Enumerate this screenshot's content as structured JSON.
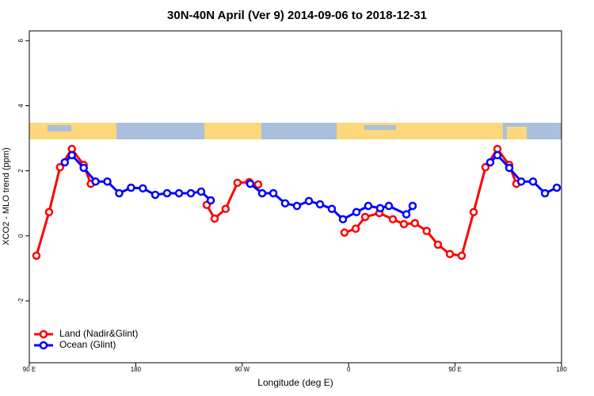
{
  "chart_data": {
    "type": "line",
    "title": "30N-40N April (Ver 9)   2014-09-06 to 2018-12-31",
    "x_label": "Longitude (deg E)",
    "y_label": "XCO2 - MLO trend (ppm)",
    "xlim": [
      90,
      540
    ],
    "xticks": [
      {
        "value": 90,
        "label": "90 E"
      },
      180,
      {
        "value": 270,
        "label": "90 W"
      },
      {
        "value": 360,
        "label": "0"
      },
      {
        "value": 450,
        "label": "90 E"
      },
      {
        "value": 540,
        "label": "180"
      }
    ],
    "ylim": [
      -3.9,
      6.3
    ],
    "yticks": [
      -2,
      0,
      2,
      4,
      6
    ],
    "legend": "bottom-left",
    "series": [
      {
        "name": "Land (Nadir&Glint)",
        "color": "#ff0000",
        "x": [
          96,
          106.7,
          116,
          126,
          136,
          142,
          null,
          240,
          246.7,
          256,
          266,
          276,
          283.5,
          null,
          356.5,
          366,
          374,
          386,
          397.4,
          406.7,
          416,
          426,
          435.5,
          445.6,
          455.6,
          465.7,
          475.7,
          485.8,
          495.8,
          501.8
        ],
        "values": [
          -0.61,
          0.73,
          2.11,
          2.67,
          2.18,
          1.6,
          null,
          0.95,
          0.53,
          0.83,
          1.63,
          1.65,
          1.58,
          null,
          0.1,
          0.22,
          0.58,
          0.7,
          0.51,
          0.36,
          0.39,
          0.15,
          -0.27,
          -0.56,
          -0.61,
          0.73,
          2.11,
          2.67,
          2.18,
          1.6
        ]
      },
      {
        "name": "Ocean (Glint)",
        "color": "#0000ff",
        "x": [
          120,
          126,
          136,
          146,
          156,
          166,
          176,
          186,
          196.5,
          206.5,
          216.6,
          226.6,
          235.3,
          243.4,
          null,
          276.8,
          286.9,
          296.3,
          306.3,
          316.3,
          326.4,
          335.8,
          345.8,
          355.2,
          366.6,
          376.6,
          386.7,
          394,
          408.8,
          414.1,
          null,
          479.7,
          485.8,
          495.8,
          505.9,
          515.9,
          526,
          536
        ],
        "values": [
          2.26,
          2.48,
          2.09,
          1.67,
          1.67,
          1.31,
          1.48,
          1.46,
          1.26,
          1.31,
          1.31,
          1.31,
          1.36,
          1.09,
          null,
          1.6,
          1.31,
          1.31,
          1.0,
          0.92,
          1.07,
          0.97,
          0.83,
          0.51,
          0.73,
          0.92,
          0.85,
          0.92,
          0.66,
          0.92,
          null,
          2.26,
          2.48,
          2.09,
          1.67,
          1.67,
          1.31,
          1.48
        ]
      }
    ]
  }
}
